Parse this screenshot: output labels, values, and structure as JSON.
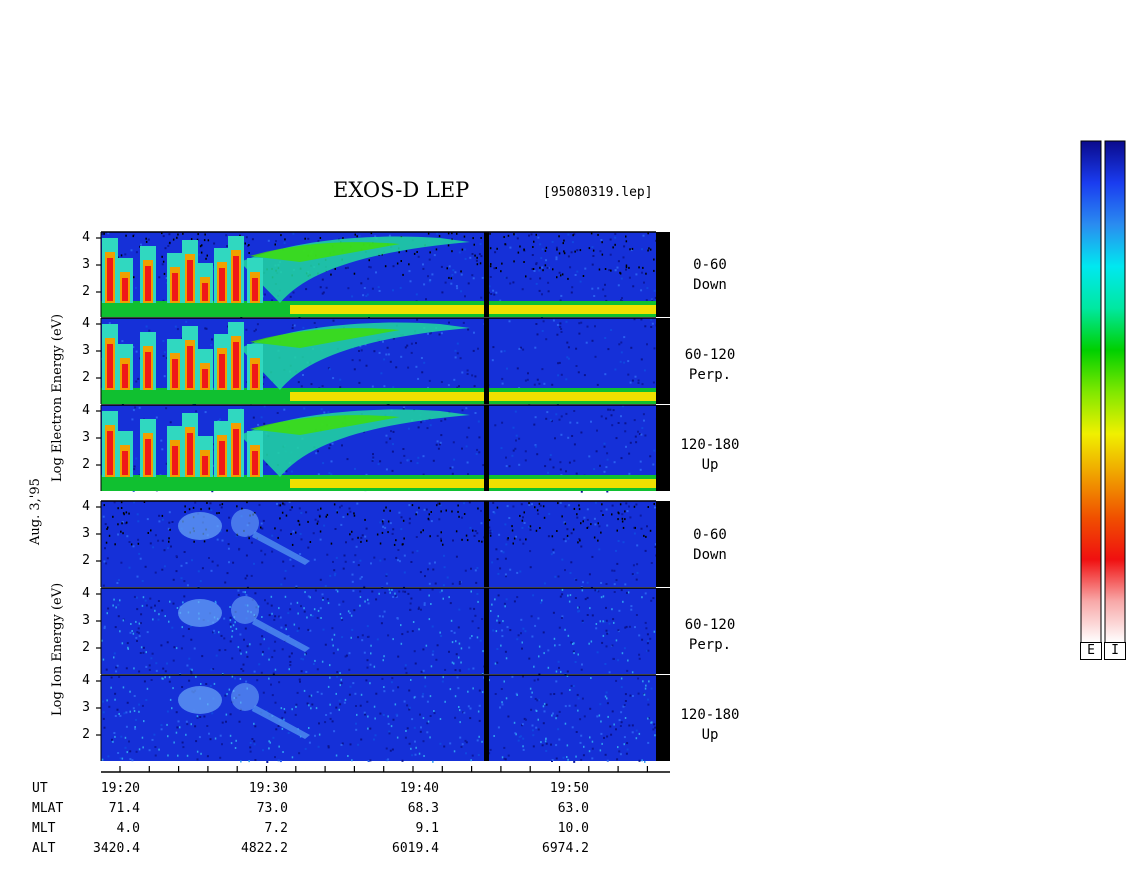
{
  "title": "EXOS-D LEP",
  "filename": "[95080319.lep]",
  "date_label": "Aug. 3,'95",
  "electron_ylabel": "Log Electron Energy (eV)",
  "ion_ylabel": "Log Ion Energy (eV)",
  "panels": [
    {
      "species": "Electron",
      "pitch_top": "0-60",
      "pitch_bottom": "Down"
    },
    {
      "species": "Electron",
      "pitch_top": "60-120",
      "pitch_bottom": "Perp."
    },
    {
      "species": "Electron",
      "pitch_top": "120-180",
      "pitch_bottom": "Up"
    },
    {
      "species": "Ion",
      "pitch_top": "0-60",
      "pitch_bottom": "Down"
    },
    {
      "species": "Ion",
      "pitch_top": "60-120",
      "pitch_bottom": "Perp."
    },
    {
      "species": "Ion",
      "pitch_top": "120-180",
      "pitch_bottom": "Up"
    }
  ],
  "yticks": [
    "4",
    "3",
    "2"
  ],
  "ephemeris": {
    "row_labels": [
      "UT",
      "MLAT",
      "MLT",
      "ALT"
    ],
    "columns": [
      {
        "UT": "19:20",
        "MLAT": "71.4",
        "MLT": "4.0",
        "ALT": "3420.4"
      },
      {
        "UT": "19:30",
        "MLAT": "73.0",
        "MLT": "7.2",
        "ALT": "4822.2"
      },
      {
        "UT": "19:40",
        "MLAT": "68.3",
        "MLT": "9.1",
        "ALT": "6019.4"
      },
      {
        "UT": "19:50",
        "MLAT": "63.0",
        "MLT": "10.0",
        "ALT": "6974.2"
      }
    ]
  },
  "colorbar_labels": [
    "E",
    "I"
  ],
  "colorbar_colors": [
    "#0a0a8c",
    "#1a3cf0",
    "#2a8cf0",
    "#00e8f0",
    "#00e8a0",
    "#00d000",
    "#80e800",
    "#f0f000",
    "#f0a000",
    "#f05000",
    "#f01010",
    "#f8a8a8",
    "#ffffff"
  ],
  "chart_data": {
    "type": "heatmap",
    "title": "EXOS-D LEP",
    "xlabel": "UT",
    "x_ticks": [
      "19:20",
      "19:30",
      "19:40",
      "19:50"
    ],
    "ylabel_electron": "Log Electron Energy (eV)",
    "ylabel_ion": "Log Ion Energy (eV)",
    "y_ticks": [
      4,
      3,
      2
    ],
    "ylim": [
      1,
      4.2
    ],
    "colorbars": [
      "E",
      "I"
    ]
  }
}
